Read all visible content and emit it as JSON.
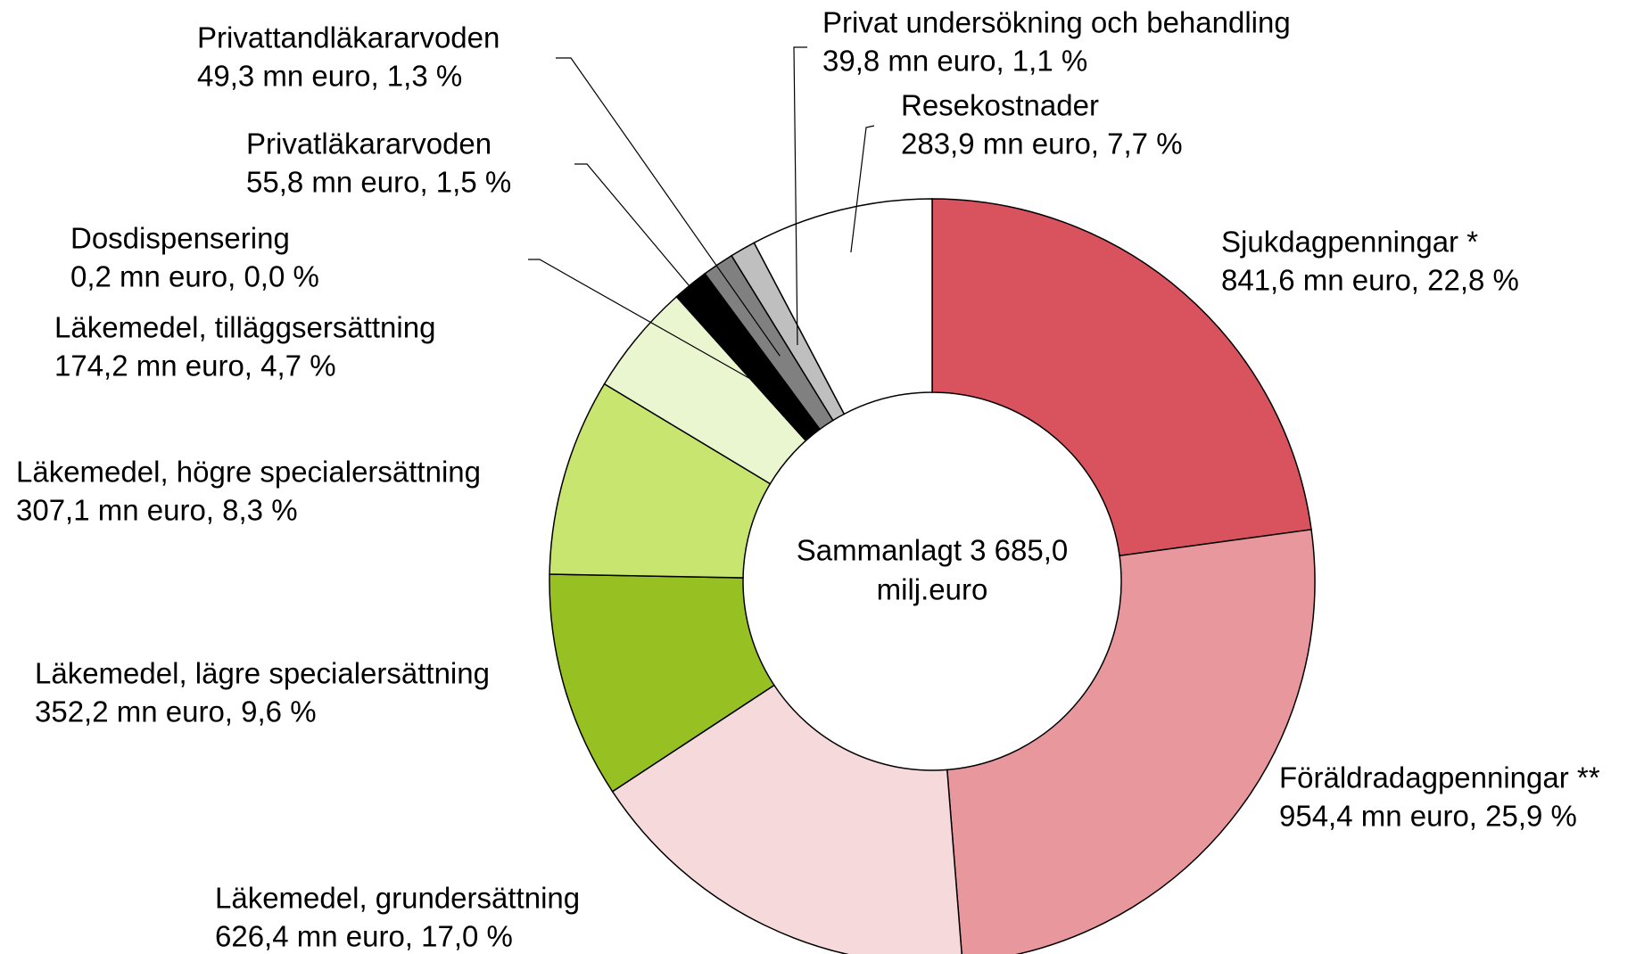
{
  "chart_data": {
    "type": "donut",
    "center_label": [
      "Sammanlagt 3 685,0",
      "milj.euro"
    ],
    "categories": [
      "Sjukdagpenningar *",
      "Föräldradagpenningar **",
      "Läkemedel, grundersättning",
      "Läkemedel, lägre specialersättning",
      "Läkemedel, högre specialersättning",
      "Läkemedel, tilläggsersättning",
      "Dosdispensering",
      "Privatläkararvoden",
      "Privattandläkararvoden",
      "Privat undersökning och behandling",
      "Resekostnader"
    ],
    "values": [
      841.6,
      954.4,
      626.4,
      352.2,
      307.1,
      174.2,
      0.2,
      55.8,
      49.3,
      39.8,
      283.9
    ],
    "value_labels": [
      "841,6 mn euro, 22,8 %",
      "954,4 mn euro, 25,9 %",
      "626,4 mn euro, 17,0 %",
      "352,2 mn euro, 9,6 %",
      "307,1 mn euro, 8,3 %",
      "174,2 mn euro, 4,7 %",
      "0,2 mn euro, 0,0 %",
      "55,8 mn euro, 1,5 %",
      "49,3 mn euro, 1,3 %",
      "39,8 mn euro, 1,1 %",
      "283,9 mn euro, 7,7 %"
    ],
    "colors": [
      "#d9535f",
      "#e8979d",
      "#f6d9db",
      "#97c122",
      "#c8e570",
      "#eaf6cf",
      "#ffffff",
      "#000000",
      "#808080",
      "#bfbfbf",
      "#ffffff"
    ]
  }
}
